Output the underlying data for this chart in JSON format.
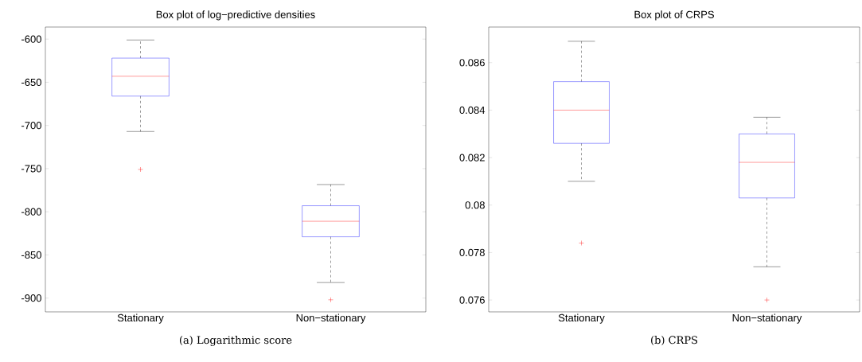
{
  "chart_data": [
    {
      "type": "box",
      "title": "Box plot of log−predictive densities",
      "categories": [
        "Stationary",
        "Non−stationary"
      ],
      "series": [
        {
          "color": "#0000ff",
          "boxes": [
            {
              "low": -707,
              "q1": -666,
              "median": -643,
              "q3": -622,
              "high": -601,
              "outliers": [
                -751
              ]
            },
            {
              "low": -882,
              "q1": -829,
              "median": -811,
              "q3": -793,
              "high": -768.5,
              "outliers": [
                -902
              ]
            }
          ]
        }
      ],
      "ylim": [
        -916,
        -586
      ],
      "yticks": [
        -900,
        -850,
        -800,
        -750,
        -700,
        -650,
        -600
      ],
      "annotations": [
        "(a) Logarithmic score"
      ]
    },
    {
      "type": "box",
      "title": "Box plot of CRPS",
      "categories": [
        "Stationary",
        "Non−stationary"
      ],
      "series": [
        {
          "color": "#0000ff",
          "boxes": [
            {
              "low": 0.081,
              "q1": 0.0826,
              "median": 0.084,
              "q3": 0.0852,
              "high": 0.0869,
              "outliers": [
                0.0784
              ]
            },
            {
              "low": 0.0774,
              "q1": 0.0803,
              "median": 0.0818,
              "q3": 0.083,
              "high": 0.0837,
              "outliers": [
                0.076
              ]
            }
          ]
        }
      ],
      "ylim": [
        0.0755,
        0.0875
      ],
      "yticks": [
        0.076,
        0.078,
        0.08,
        0.082,
        0.084,
        0.086
      ],
      "annotations": [
        "(b) CRPS"
      ]
    }
  ]
}
